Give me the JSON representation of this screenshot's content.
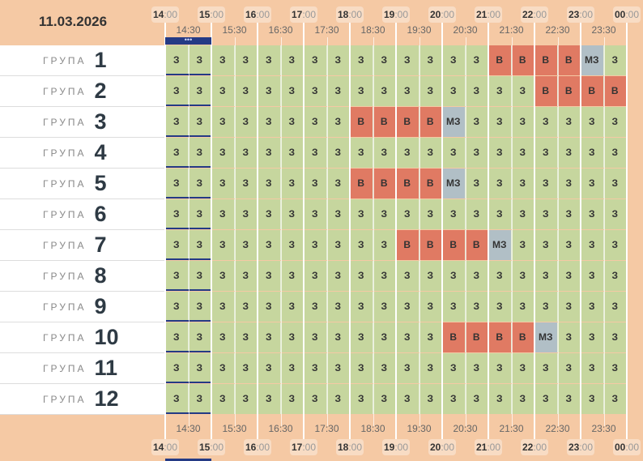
{
  "date": "11.03.2026",
  "group_word": "ГРУПА",
  "hours": [
    {
      "h": "14",
      "m": ":00"
    },
    {
      "h": "15",
      "m": ":00"
    },
    {
      "h": "16",
      "m": ":00"
    },
    {
      "h": "17",
      "m": ":00"
    },
    {
      "h": "18",
      "m": ":00"
    },
    {
      "h": "19",
      "m": ":00"
    },
    {
      "h": "20",
      "m": ":00"
    },
    {
      "h": "21",
      "m": ":00"
    },
    {
      "h": "22",
      "m": ":00"
    },
    {
      "h": "23",
      "m": ":00"
    },
    {
      "h": "00",
      "m": ":00"
    }
  ],
  "half_hours": [
    "14:30",
    "15:30",
    "16:30",
    "17:30",
    "18:30",
    "19:30",
    "20:30",
    "21:30",
    "22:30",
    "23:30"
  ],
  "legend": {
    "Z": "З",
    "V": "В",
    "M": "МЗ"
  },
  "colors": {
    "Z": "#c6d69e",
    "V": "#e07a63",
    "M": "#b1bfc6"
  },
  "groups": [
    {
      "num": "1",
      "slots": "ZZZZZZZZZZZZZZVVVVMZ"
    },
    {
      "num": "2",
      "slots": "ZZZZZZZZZZZZZZZZVVVV"
    },
    {
      "num": "3",
      "slots": "ZZZZZZZZVVVVMZZZZZZZ"
    },
    {
      "num": "4",
      "slots": "ZZZZZZZZZZZZZZZZZZZZ"
    },
    {
      "num": "5",
      "slots": "ZZZZZZZZVVVVMZZZZZZZ"
    },
    {
      "num": "6",
      "slots": "ZZZZZZZZZZZZZZZZZZZZ"
    },
    {
      "num": "7",
      "slots": "ZZZZZZZZZZVVVVMZZZZZ"
    },
    {
      "num": "8",
      "slots": "ZZZZZZZZZZZZZZZZZZZZ"
    },
    {
      "num": "9",
      "slots": "ZZZZZZZZZZZZZZZZZZZZ"
    },
    {
      "num": "10",
      "slots": "ZZZZZZZZZZZZVVVVMZZZ"
    },
    {
      "num": "11",
      "slots": "ZZZZZZZZZZZZZZZZZZZZ"
    },
    {
      "num": "12",
      "slots": "ZZZZZZZZZZZZZZZZZZZZ"
    }
  ]
}
